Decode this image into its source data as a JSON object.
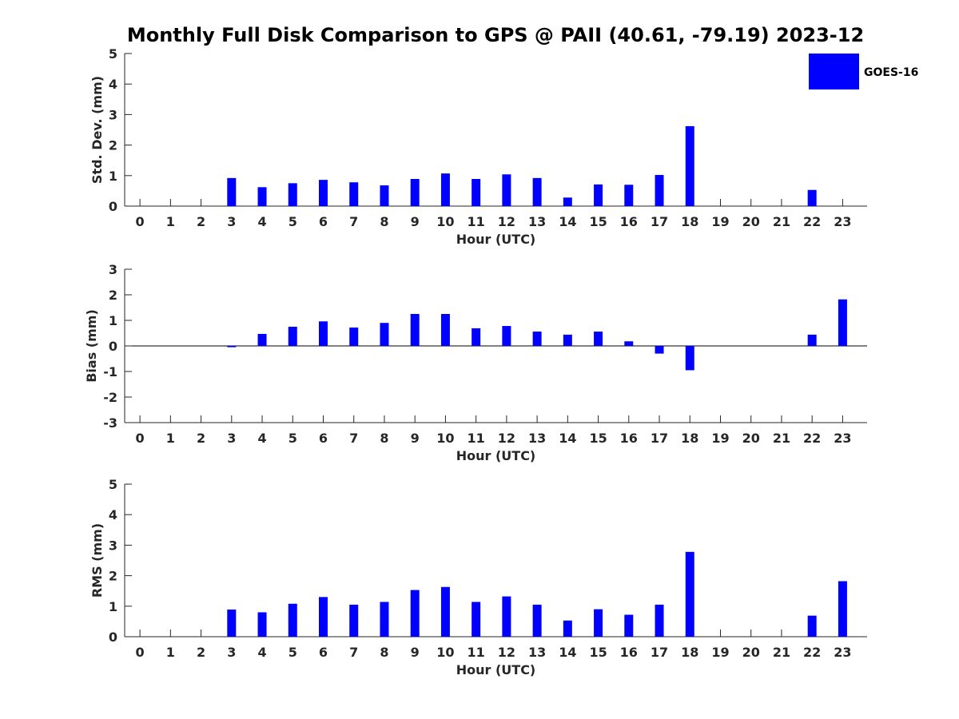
{
  "title": "Monthly Full Disk Comparison to GPS @ PAII (40.61, -79.19) 2023-12",
  "legend": {
    "label": "GOES-16",
    "color": "#0000ff"
  },
  "chart_data": [
    {
      "type": "bar",
      "categories": [
        "0",
        "1",
        "2",
        "3",
        "4",
        "5",
        "6",
        "7",
        "8",
        "9",
        "10",
        "11",
        "12",
        "13",
        "14",
        "15",
        "16",
        "17",
        "18",
        "19",
        "20",
        "21",
        "22",
        "23"
      ],
      "values": [
        null,
        null,
        null,
        0.92,
        0.62,
        0.75,
        0.86,
        0.78,
        0.68,
        0.89,
        1.07,
        0.89,
        1.04,
        0.92,
        0.28,
        0.71,
        0.7,
        1.02,
        2.62,
        null,
        null,
        null,
        0.53,
        null
      ],
      "series": [
        {
          "name": "GOES-16"
        }
      ],
      "xlabel": "Hour (UTC)",
      "ylabel": "Std. Dev. (mm)",
      "ylim": [
        0,
        5
      ],
      "yticks": [
        "0",
        "1",
        "2",
        "3",
        "4",
        "5"
      ],
      "zero_line": false,
      "legend_position": "top-right",
      "grid": false
    },
    {
      "type": "bar",
      "categories": [
        "0",
        "1",
        "2",
        "3",
        "4",
        "5",
        "6",
        "7",
        "8",
        "9",
        "10",
        "11",
        "12",
        "13",
        "14",
        "15",
        "16",
        "17",
        "18",
        "19",
        "20",
        "21",
        "22",
        "23"
      ],
      "values": [
        null,
        null,
        null,
        -0.05,
        0.47,
        0.75,
        0.96,
        0.72,
        0.9,
        1.25,
        1.25,
        0.69,
        0.78,
        0.56,
        0.44,
        0.56,
        0.18,
        -0.3,
        -0.95,
        null,
        null,
        null,
        0.44,
        1.82
      ],
      "series": [
        {
          "name": "GOES-16"
        }
      ],
      "xlabel": "Hour (UTC)",
      "ylabel": "Bias (mm)",
      "ylim": [
        -3,
        3
      ],
      "yticks": [
        "-3",
        "-2",
        "-1",
        "0",
        "1",
        "2",
        "3"
      ],
      "zero_line": true,
      "grid": false
    },
    {
      "type": "bar",
      "categories": [
        "0",
        "1",
        "2",
        "3",
        "4",
        "5",
        "6",
        "7",
        "8",
        "9",
        "10",
        "11",
        "12",
        "13",
        "14",
        "15",
        "16",
        "17",
        "18",
        "19",
        "20",
        "21",
        "22",
        "23"
      ],
      "values": [
        null,
        null,
        null,
        0.89,
        0.8,
        1.08,
        1.3,
        1.05,
        1.14,
        1.53,
        1.63,
        1.14,
        1.32,
        1.05,
        0.53,
        0.9,
        0.72,
        1.05,
        2.78,
        null,
        null,
        null,
        0.69,
        1.82
      ],
      "series": [
        {
          "name": "GOES-16"
        }
      ],
      "xlabel": "Hour (UTC)",
      "ylabel": "RMS (mm)",
      "ylim": [
        0,
        5
      ],
      "yticks": [
        "0",
        "1",
        "2",
        "3",
        "4",
        "5"
      ],
      "zero_line": false,
      "grid": false
    }
  ]
}
